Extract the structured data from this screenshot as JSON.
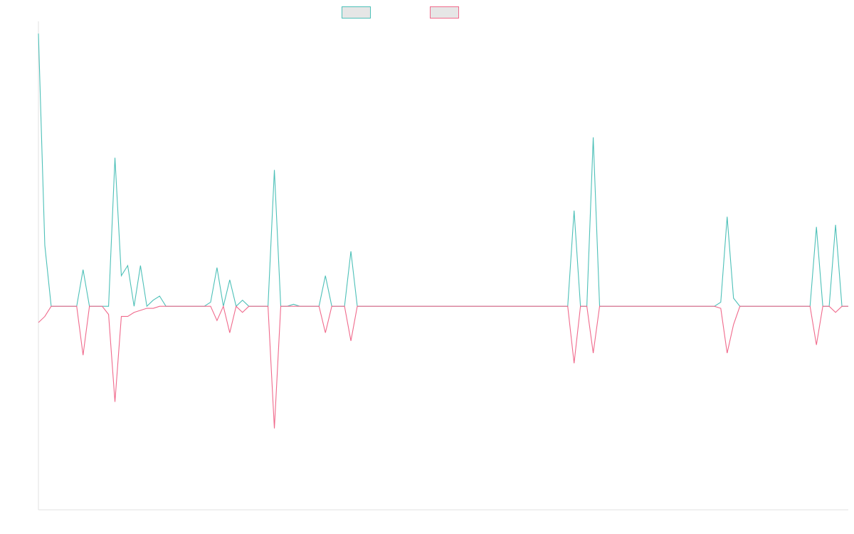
{
  "chart_data": {
    "type": "line",
    "title": "",
    "xlabel": "",
    "ylabel": "",
    "grid": false,
    "legend": "top-center",
    "ylim": [
      -1,
      1.4
    ],
    "zero_line": true,
    "series": [
      {
        "color": "#4dc0b8",
        "values": [
          1.34,
          0.3,
          0,
          0,
          0,
          0,
          0,
          0.18,
          0,
          0,
          0,
          0,
          0.73,
          0.15,
          0.2,
          0,
          0.2,
          0,
          0.03,
          0.05,
          0,
          0,
          0,
          0,
          0,
          0,
          0,
          0.02,
          0.19,
          0,
          0.13,
          0,
          0.03,
          0,
          0,
          0,
          0,
          0.67,
          0,
          0,
          0.01,
          0,
          0,
          0,
          0,
          0.15,
          0,
          0,
          0,
          0.27,
          0,
          0,
          0,
          0,
          0,
          0,
          0,
          0,
          0,
          0,
          0,
          0,
          0,
          0,
          0,
          0,
          0,
          0,
          0,
          0,
          0,
          0,
          0,
          0,
          0,
          0,
          0,
          0,
          0,
          0,
          0,
          0,
          0,
          0,
          0.47,
          0,
          0,
          0.83,
          0,
          0,
          0,
          0,
          0,
          0,
          0,
          0,
          0,
          0,
          0,
          0,
          0,
          0,
          0,
          0,
          0,
          0,
          0,
          0.02,
          0.44,
          0.04,
          0,
          0,
          0,
          0,
          0,
          0,
          0,
          0,
          0,
          0,
          0,
          0,
          0.39,
          0,
          0,
          0.4,
          0,
          0
        ]
      },
      {
        "color": "#f06a8c",
        "values": [
          -0.08,
          -0.05,
          0,
          0,
          0,
          0,
          0,
          -0.24,
          0,
          0,
          0,
          -0.04,
          -0.47,
          -0.05,
          -0.05,
          -0.03,
          -0.02,
          -0.01,
          -0.01,
          0,
          0,
          0,
          0,
          0,
          0,
          0,
          0,
          0,
          -0.07,
          0,
          -0.13,
          0,
          -0.03,
          0,
          0,
          0,
          0,
          -0.6,
          0,
          0,
          0,
          0,
          0,
          0,
          0,
          -0.13,
          0,
          0,
          0,
          -0.17,
          0,
          0,
          0,
          0,
          0,
          0,
          0,
          0,
          0,
          0,
          0,
          0,
          0,
          0,
          0,
          0,
          0,
          0,
          0,
          0,
          0,
          0,
          0,
          0,
          0,
          0,
          0,
          0,
          0,
          0,
          0,
          0,
          0,
          0,
          -0.28,
          0,
          0,
          -0.23,
          0,
          0,
          0,
          0,
          0,
          0,
          0,
          0,
          0,
          0,
          0,
          0,
          0,
          0,
          0,
          0,
          0,
          0,
          0,
          -0.01,
          -0.23,
          -0.09,
          0,
          0,
          0,
          0,
          0,
          0,
          0,
          0,
          0,
          0,
          0,
          0,
          -0.19,
          0,
          0,
          -0.03,
          0,
          0
        ]
      }
    ]
  }
}
